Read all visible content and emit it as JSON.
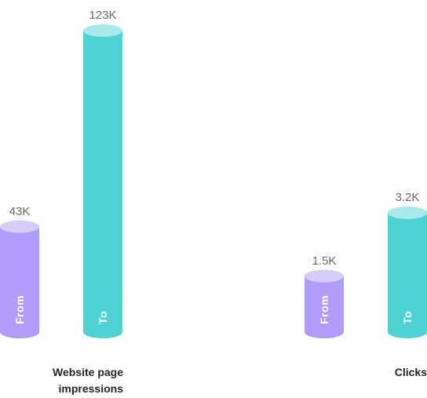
{
  "chart_data": [
    {
      "type": "bar",
      "category": "Website page impressions",
      "category_lines": [
        "Website page",
        "impressions"
      ],
      "series": [
        {
          "name": "From",
          "value": 43000,
          "display": "43K",
          "color": "#b19bfb"
        },
        {
          "name": "To",
          "value": 123000,
          "display": "123K",
          "color": "#4fd2d3"
        }
      ]
    },
    {
      "type": "bar",
      "category": "Clicks",
      "category_lines": [
        "Clicks"
      ],
      "series": [
        {
          "name": "From",
          "value": 1500,
          "display": "1.5K",
          "color": "#b19bfb"
        },
        {
          "name": "To",
          "value": 3200,
          "display": "3.2K",
          "color": "#4fd2d3"
        }
      ]
    }
  ]
}
